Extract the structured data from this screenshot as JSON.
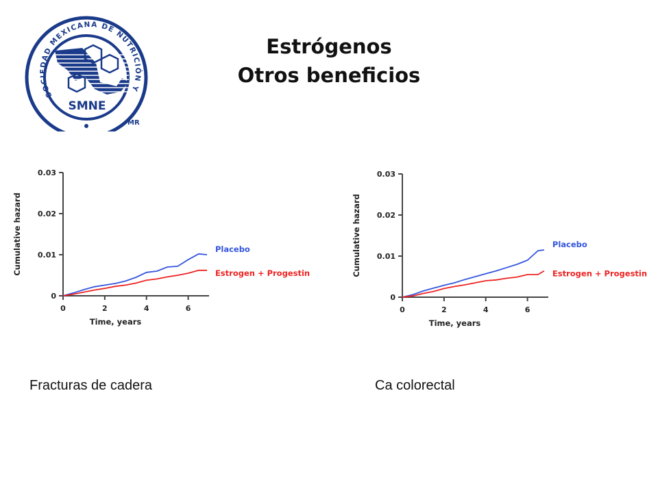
{
  "logo": {
    "ring_text": "SOCIEDAD MEXICANA DE NUTRICIÓN Y ENDOCRINOLOGÍA",
    "acronym": "SMNE",
    "mark": "MR",
    "color": "#1a3a8a"
  },
  "header": {
    "title_line1": "Estrógenos",
    "title_line2": "Otros beneficios"
  },
  "captions": {
    "left": "Fracturas de cadera",
    "right": "Ca colorectal"
  },
  "chart_data": [
    {
      "type": "line",
      "xlabel": "Time, years",
      "ylabel": "Cumulative hazard",
      "xlim": [
        0,
        7
      ],
      "ylim": [
        0,
        0.03
      ],
      "xticks": [
        "0",
        "2",
        "4",
        "6"
      ],
      "yticks": [
        "0",
        "0.01",
        "0.02",
        "0.03"
      ],
      "series": [
        {
          "name": "Placebo",
          "color": "#3355dd",
          "x": [
            0,
            0.5,
            1,
            1.5,
            2,
            2.5,
            3,
            3.5,
            4,
            4.5,
            5,
            5.5,
            6,
            6.5,
            6.9
          ],
          "y": [
            0,
            0.0007,
            0.0015,
            0.0022,
            0.0026,
            0.003,
            0.0036,
            0.0045,
            0.0057,
            0.006,
            0.007,
            0.0072,
            0.0088,
            0.0102,
            0.01
          ]
        },
        {
          "name": "Estrogen + Progestin",
          "color": "#ee2222",
          "x": [
            0,
            0.5,
            1,
            1.5,
            2,
            2.5,
            3,
            3.5,
            4,
            4.5,
            5,
            5.5,
            6,
            6.5,
            6.9
          ],
          "y": [
            0,
            0.0004,
            0.0009,
            0.0014,
            0.0018,
            0.0023,
            0.0026,
            0.0031,
            0.0038,
            0.0041,
            0.0046,
            0.005,
            0.0055,
            0.0062,
            0.0062
          ]
        }
      ]
    },
    {
      "type": "line",
      "xlabel": "Time, years",
      "ylabel": "Cumulative hazard",
      "xlim": [
        0,
        7
      ],
      "ylim": [
        0,
        0.03
      ],
      "xticks": [
        "0",
        "2",
        "4",
        "6"
      ],
      "yticks": [
        "0",
        "0.01",
        "0.02",
        "0.03"
      ],
      "series": [
        {
          "name": "Placebo",
          "color": "#3355dd",
          "x": [
            0,
            0.5,
            1,
            1.5,
            2,
            2.5,
            3,
            3.5,
            4,
            4.5,
            5,
            5.5,
            6,
            6.5,
            6.8
          ],
          "y": [
            0,
            0.0006,
            0.0015,
            0.0022,
            0.0029,
            0.0035,
            0.0043,
            0.005,
            0.0057,
            0.0064,
            0.0072,
            0.008,
            0.009,
            0.0113,
            0.0115
          ]
        },
        {
          "name": "Estrogen + Progestin",
          "color": "#ee2222",
          "x": [
            0,
            0.5,
            1,
            1.5,
            2,
            2.5,
            3,
            3.5,
            4,
            4.5,
            5,
            5.5,
            6,
            6.5,
            6.8
          ],
          "y": [
            0,
            0.0003,
            0.0009,
            0.0014,
            0.0021,
            0.0026,
            0.003,
            0.0035,
            0.004,
            0.0042,
            0.0046,
            0.0049,
            0.0055,
            0.0055,
            0.0064
          ]
        }
      ]
    }
  ]
}
